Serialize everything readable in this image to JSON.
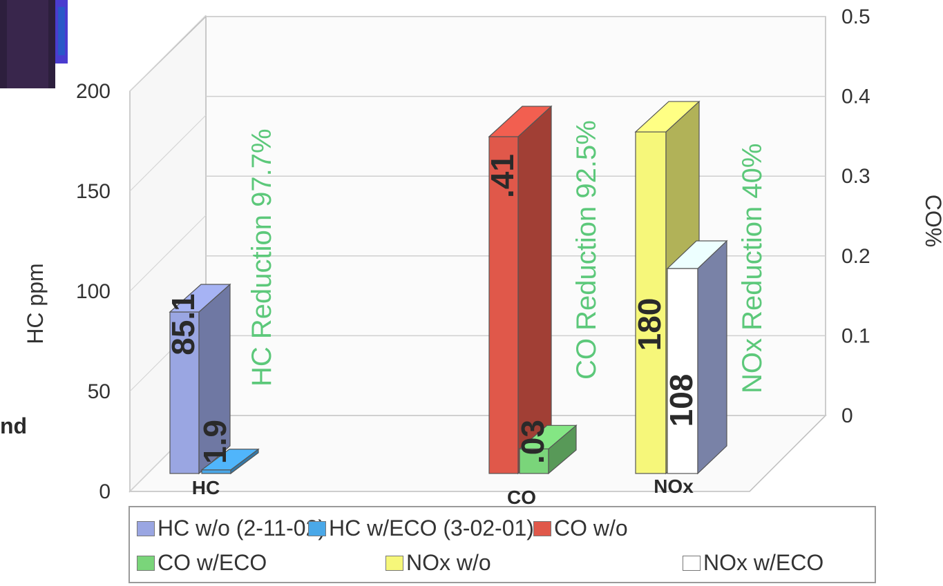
{
  "chart_data": {
    "type": "bar",
    "categories": [
      "HC",
      "CO",
      "NOx"
    ],
    "ylabel": "HC ppm",
    "y2label": "CO%",
    "ylim": [
      0,
      200
    ],
    "y2lim": [
      0,
      0.5
    ],
    "yticks": [
      "0",
      "50",
      "100",
      "150",
      "200"
    ],
    "y2ticks": [
      "0",
      "0.1",
      "0.2",
      "0.3",
      "0.4",
      "0.5"
    ],
    "grid": true,
    "legend_position": "bottom",
    "series": [
      {
        "name": "HC w/o (2-11-02)",
        "category": "HC",
        "axis": "left",
        "value": 85.1,
        "label": "85.1",
        "color": "#9aa6e2"
      },
      {
        "name": "HC w/ECO (3-02-01)",
        "category": "HC",
        "axis": "left",
        "value": 1.9,
        "label": "1.9",
        "color": "#4aa8e8"
      },
      {
        "name": "CO w/o",
        "category": "CO",
        "axis": "right",
        "value": 0.41,
        "label": ".41",
        "color": "#e0584a"
      },
      {
        "name": "CO w/ECO",
        "category": "CO",
        "axis": "right",
        "value": 0.03,
        "label": ".03",
        "color": "#7ad57a"
      },
      {
        "name": "NOx w/o",
        "category": "NOx",
        "axis": "left",
        "value": 180,
        "label": "180",
        "color": "#f6f77a"
      },
      {
        "name": "NOx w/ECO",
        "category": "NOx",
        "axis": "left",
        "value": 108,
        "label": "108",
        "color": "#ffffff"
      }
    ],
    "annotations": [
      "HC Reduction 97.7%",
      "CO Reduction 92.5%",
      "NOx Reduction 40%"
    ]
  },
  "side_text": "nd"
}
